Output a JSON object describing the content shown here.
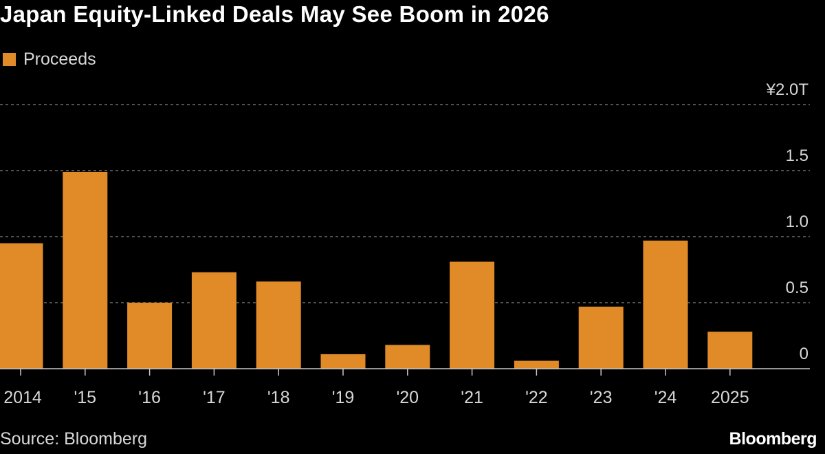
{
  "title": "Japan Equity-Linked Deals May See Boom in 2026",
  "source": "Source: Bloomberg",
  "brand": "Bloomberg",
  "colors": {
    "background": "#000000",
    "bar": "#e18b28",
    "gridline": "#6e6e6e",
    "axis": "#c8c8c8",
    "text": "#d8d8d8"
  },
  "chart_data": {
    "type": "bar",
    "title": "Japan Equity-Linked Deals May See Boom in 2026",
    "xlabel": "",
    "ylabel": "",
    "series": [
      {
        "name": "Proceeds",
        "values": [
          0.95,
          1.49,
          0.5,
          0.73,
          0.66,
          0.11,
          0.18,
          0.81,
          0.06,
          0.47,
          0.97,
          0.28
        ]
      }
    ],
    "categories": [
      "2014",
      "'15",
      "'16",
      "'17",
      "'18",
      "'19",
      "'20",
      "'21",
      "'22",
      "'23",
      "'24",
      "2025"
    ],
    "ylim": [
      0,
      2.0
    ],
    "yticks": [
      0,
      0.5,
      1.0,
      1.5,
      2.0
    ],
    "ytick_labels": [
      "0",
      "0.5",
      "1.0",
      "1.5",
      "¥2.0T"
    ],
    "legend": [
      "Proceeds"
    ],
    "legend_position": "top-left",
    "grid": true,
    "unit": "¥ trillion"
  }
}
